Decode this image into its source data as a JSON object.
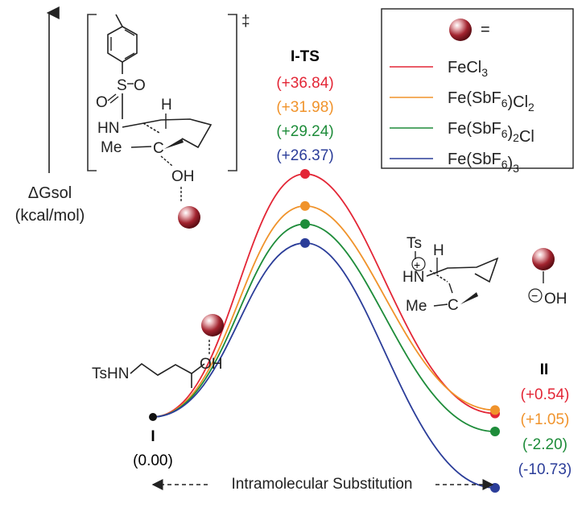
{
  "diagram": {
    "y_axis": {
      "label_line1": "ΔGsol",
      "label_line2": "(kcal/mol)"
    },
    "x_axis": {
      "label": "Intramolecular Substitution"
    },
    "legend": {
      "equals": "=",
      "entries": [
        {
          "name": "FeCl3",
          "main": "FeCl",
          "sub1": "3",
          "mid": "",
          "sub2": "",
          "tail": "",
          "color": "#e32636"
        },
        {
          "name": "Fe(SbF6)Cl2",
          "main": "Fe(SbF",
          "sub1": "6",
          "mid": ")Cl",
          "sub2": "2",
          "tail": "",
          "color": "#f0932b"
        },
        {
          "name": "Fe(SbF6)2Cl",
          "main": "Fe(SbF",
          "sub1": "6",
          "mid": ")",
          "sub2": "2",
          "tail": "Cl",
          "color": "#1e8c3a"
        },
        {
          "name": "Fe(SbF6)3",
          "main": "Fe(SbF",
          "sub1": "6",
          "mid": ")",
          "sub2": "3",
          "tail": "",
          "color": "#2b3d99"
        }
      ]
    },
    "states": {
      "start": {
        "label": "I",
        "value": "(0.00)"
      },
      "ts": {
        "label": "I-TS",
        "values": [
          "(+36.84)",
          "(+31.98)",
          "(+29.24)",
          "(+26.37)"
        ]
      },
      "end": {
        "label": "II",
        "values": [
          "(+0.54)",
          "(+1.05)",
          "(-2.20)",
          "(-10.73)"
        ]
      }
    },
    "energies": {
      "start": 0.0,
      "ts": [
        36.84,
        31.98,
        29.24,
        26.37
      ],
      "end": [
        0.54,
        1.05,
        -2.2,
        -10.73
      ]
    },
    "molecules": {
      "start_substituent": "TsHN",
      "start_oh": "OH",
      "ts_s": "S",
      "ts_o1": "O",
      "ts_o2": "O",
      "ts_h": "H",
      "ts_hn": "HN",
      "ts_me": "Me",
      "ts_c": "C",
      "ts_oh": "OH",
      "ts_dagger": "‡",
      "prod_ts": "Ts",
      "prod_h": "H",
      "prod_hn": "HN",
      "prod_plus": "+",
      "prod_me": "Me",
      "prod_c": "C",
      "prod_minus": "−",
      "prod_oh": "OH"
    }
  }
}
